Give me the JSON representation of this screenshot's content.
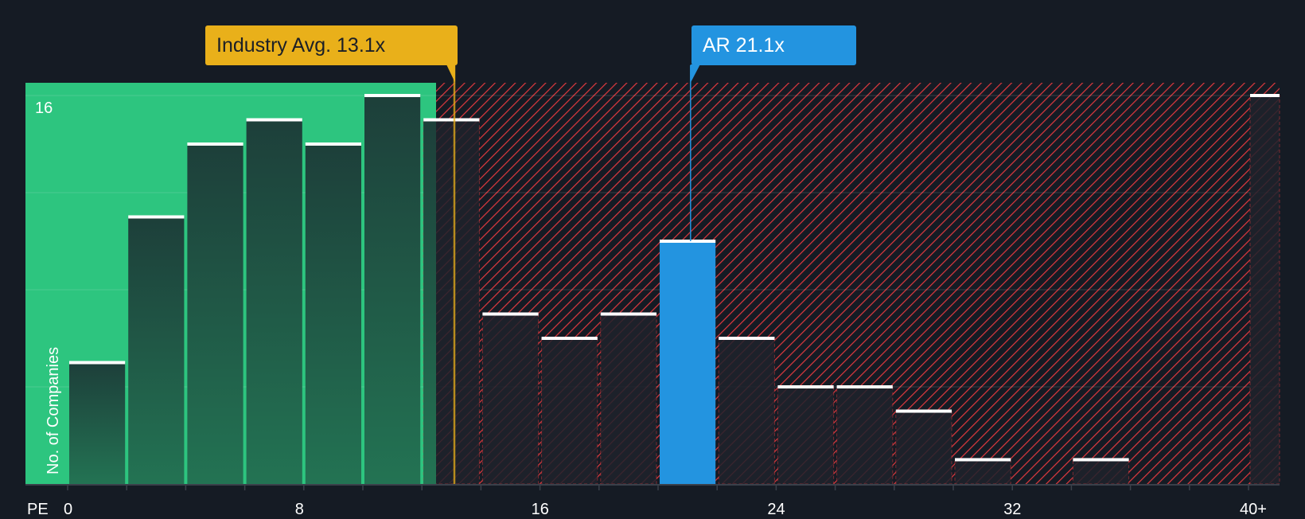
{
  "chart_data": {
    "type": "bar",
    "xlabel": "PE",
    "ylabel": "No. of Companies",
    "bin_width": 2,
    "bins": [
      {
        "from": 0,
        "to": 2,
        "count": 5
      },
      {
        "from": 2,
        "to": 4,
        "count": 11
      },
      {
        "from": 4,
        "to": 6,
        "count": 14
      },
      {
        "from": 6,
        "to": 8,
        "count": 15
      },
      {
        "from": 8,
        "to": 10,
        "count": 14
      },
      {
        "from": 10,
        "to": 12,
        "count": 16
      },
      {
        "from": 12,
        "to": 14,
        "count": 15
      },
      {
        "from": 14,
        "to": 16,
        "count": 7
      },
      {
        "from": 16,
        "to": 18,
        "count": 6
      },
      {
        "from": 18,
        "to": 20,
        "count": 7
      },
      {
        "from": 20,
        "to": 22,
        "count": 10
      },
      {
        "from": 22,
        "to": 24,
        "count": 6
      },
      {
        "from": 24,
        "to": 26,
        "count": 4
      },
      {
        "from": 26,
        "to": 28,
        "count": 4
      },
      {
        "from": 28,
        "to": 30,
        "count": 3
      },
      {
        "from": 30,
        "to": 32,
        "count": 1
      },
      {
        "from": 32,
        "to": 34,
        "count": 0
      },
      {
        "from": 34,
        "to": 36,
        "count": 1
      },
      {
        "from": 36,
        "to": 38,
        "count": 0
      },
      {
        "from": 38,
        "to": 40,
        "count": 0
      },
      {
        "from": 40,
        "to": 41,
        "count": 16
      }
    ],
    "x_ticks": [
      {
        "value": 0,
        "label": "0"
      },
      {
        "value": 8,
        "label": "8"
      },
      {
        "value": 16,
        "label": "16"
      },
      {
        "value": 24,
        "label": "24"
      },
      {
        "value": 32,
        "label": "32"
      },
      {
        "value": 40,
        "label": "40+"
      }
    ],
    "y_ticks": [
      {
        "value": 16,
        "label": "16"
      }
    ],
    "ylim": [
      0,
      16
    ],
    "grid": true,
    "industry_avg": {
      "label": "Industry Avg. 13.1x",
      "value": 13.1
    },
    "company": {
      "label": "AR 21.1x",
      "value": 21.1
    },
    "colors": {
      "background": "#151b24",
      "undervalued": "#2dc57f",
      "overvalued_hatch": "#e0393e",
      "industry": "#e9b01a",
      "company": "#2394e0",
      "bar_cap": "#ffffff"
    }
  }
}
